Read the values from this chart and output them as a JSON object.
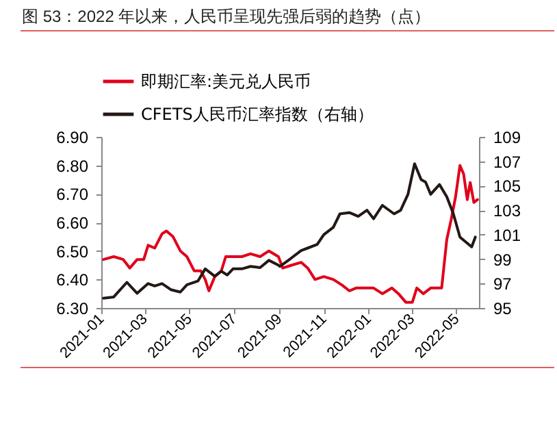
{
  "chart_data": {
    "type": "line",
    "title": "图 53：2022 年以来，人民币呈现先强后弱的趋势（点）",
    "legend": "top",
    "grid": false,
    "xlim": [
      "2021-01-01",
      "2022-06-01"
    ],
    "xticks": [
      "2021-01",
      "2021-03",
      "2021-05",
      "2021-07",
      "2021-09",
      "2021-11",
      "2022-01",
      "2022-03",
      "2022-05"
    ],
    "ylim": [
      6.3,
      6.9
    ],
    "yticks": [
      {
        "value": 6.3,
        "label": "6.30"
      },
      {
        "value": 6.4,
        "label": "6.40"
      },
      {
        "value": 6.5,
        "label": "6.50"
      },
      {
        "value": 6.6,
        "label": "6.60"
      },
      {
        "value": 6.7,
        "label": "6.70"
      },
      {
        "value": 6.8,
        "label": "6.80"
      },
      {
        "value": 6.9,
        "label": "6.90"
      }
    ],
    "y2lim": [
      95,
      109
    ],
    "y2ticks": [
      95,
      97,
      99,
      101,
      103,
      105,
      107,
      109
    ],
    "series": [
      {
        "name": "即期汇率:美元兑人民币",
        "color": "#e0001b",
        "x": [
          "2021-01-04",
          "2021-01-18",
          "2021-01-31",
          "2021-02-09",
          "2021-02-19",
          "2021-02-28",
          "2021-03-06",
          "2021-03-15",
          "2021-03-25",
          "2021-03-31",
          "2021-04-09",
          "2021-04-19",
          "2021-04-28",
          "2021-05-08",
          "2021-05-17",
          "2021-05-23",
          "2021-05-28",
          "2021-06-05",
          "2021-06-14",
          "2021-06-20",
          "2021-06-30",
          "2021-07-12",
          "2021-07-24",
          "2021-08-06",
          "2021-08-18",
          "2021-08-31",
          "2021-09-06",
          "2021-09-18",
          "2021-10-01",
          "2021-10-10",
          "2021-10-20",
          "2021-11-01",
          "2021-11-14",
          "2021-11-26",
          "2021-12-06",
          "2021-12-15",
          "2021-12-27",
          "2022-01-08",
          "2022-01-20",
          "2022-02-02",
          "2022-02-11",
          "2022-02-21",
          "2022-03-02",
          "2022-03-08",
          "2022-03-17",
          "2022-03-27",
          "2022-04-11",
          "2022-04-18",
          "2022-04-24",
          "2022-04-30",
          "2022-05-06",
          "2022-05-11",
          "2022-05-16",
          "2022-05-20",
          "2022-05-25",
          "2022-05-30"
        ],
        "values": [
          6.47,
          6.48,
          6.47,
          6.44,
          6.47,
          6.47,
          6.52,
          6.51,
          6.56,
          6.57,
          6.55,
          6.5,
          6.48,
          6.43,
          6.43,
          6.4,
          6.36,
          6.41,
          6.43,
          6.48,
          6.48,
          6.48,
          6.49,
          6.48,
          6.5,
          6.48,
          6.44,
          6.45,
          6.46,
          6.44,
          6.4,
          6.41,
          6.4,
          6.38,
          6.36,
          6.37,
          6.37,
          6.37,
          6.35,
          6.37,
          6.35,
          6.32,
          6.32,
          6.37,
          6.35,
          6.37,
          6.37,
          6.54,
          6.61,
          6.69,
          6.8,
          6.77,
          6.68,
          6.74,
          6.67,
          6.68
        ]
      },
      {
        "name": "CFETS人民币汇率指数（右轴）",
        "color": "#231815",
        "axis": "y2",
        "x": [
          "2021-01-04",
          "2021-01-18",
          "2021-02-05",
          "2021-02-19",
          "2021-03-06",
          "2021-03-15",
          "2021-03-25",
          "2021-04-06",
          "2021-04-19",
          "2021-04-28",
          "2021-05-13",
          "2021-05-23",
          "2021-06-05",
          "2021-06-14",
          "2021-06-22",
          "2021-06-30",
          "2021-07-12",
          "2021-07-24",
          "2021-08-06",
          "2021-08-18",
          "2021-08-31",
          "2021-09-02",
          "2021-09-18",
          "2021-10-01",
          "2021-10-10",
          "2021-10-23",
          "2021-11-01",
          "2021-11-14",
          "2021-11-23",
          "2021-12-06",
          "2021-12-18",
          "2021-12-30",
          "2022-01-08",
          "2022-01-20",
          "2022-02-05",
          "2022-02-14",
          "2022-02-24",
          "2022-03-05",
          "2022-03-14",
          "2022-03-20",
          "2022-03-27",
          "2022-04-08",
          "2022-04-18",
          "2022-04-27",
          "2022-05-06",
          "2022-05-22",
          "2022-05-27"
        ],
        "values": [
          95.8,
          95.9,
          97.1,
          96.2,
          97.0,
          96.8,
          97.0,
          96.5,
          96.3,
          96.9,
          97.2,
          98.2,
          97.6,
          98.0,
          97.7,
          98.2,
          98.2,
          98.4,
          98.3,
          98.9,
          98.5,
          98.4,
          99.1,
          99.7,
          99.9,
          100.2,
          101.0,
          101.6,
          102.7,
          102.8,
          102.5,
          103.0,
          102.3,
          103.4,
          102.7,
          103.0,
          104.3,
          106.8,
          105.5,
          105.3,
          104.3,
          105.1,
          104.1,
          102.7,
          100.8,
          100.0,
          100.8
        ]
      }
    ]
  }
}
